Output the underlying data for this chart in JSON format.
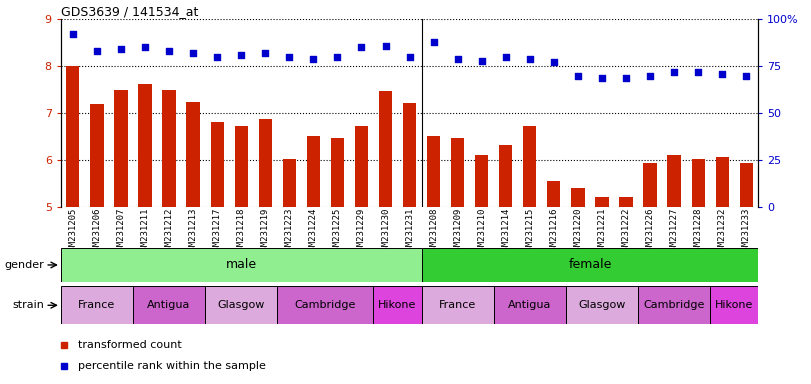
{
  "title": "GDS3639 / 141534_at",
  "samples": [
    "GSM231205",
    "GSM231206",
    "GSM231207",
    "GSM231211",
    "GSM231212",
    "GSM231213",
    "GSM231217",
    "GSM231218",
    "GSM231219",
    "GSM231223",
    "GSM231224",
    "GSM231225",
    "GSM231229",
    "GSM231230",
    "GSM231231",
    "GSM231208",
    "GSM231209",
    "GSM231210",
    "GSM231214",
    "GSM231215",
    "GSM231216",
    "GSM231220",
    "GSM231221",
    "GSM231222",
    "GSM231226",
    "GSM231227",
    "GSM231228",
    "GSM231232",
    "GSM231233"
  ],
  "bar_values": [
    8.0,
    7.2,
    7.5,
    7.62,
    7.5,
    7.25,
    6.82,
    6.72,
    6.88,
    6.02,
    6.52,
    6.48,
    6.72,
    7.48,
    7.22,
    6.52,
    6.48,
    6.12,
    6.32,
    6.72,
    5.55,
    5.42,
    5.22,
    5.22,
    5.95,
    6.12,
    6.02,
    6.08,
    5.95
  ],
  "dot_values": [
    92,
    83,
    84,
    85,
    83,
    82,
    80,
    81,
    82,
    80,
    79,
    80,
    85,
    86,
    80,
    88,
    79,
    78,
    80,
    79,
    77,
    70,
    69,
    69,
    70,
    72,
    72,
    71,
    70
  ],
  "ylim_left": [
    5,
    9
  ],
  "ylim_right": [
    0,
    100
  ],
  "yticks_left": [
    5,
    6,
    7,
    8,
    9
  ],
  "yticks_right": [
    0,
    25,
    50,
    75,
    100
  ],
  "yticklabels_right": [
    "0",
    "25",
    "50",
    "75",
    "100%"
  ],
  "bar_color": "#cc2200",
  "dot_color": "#0000cc",
  "gender_groups": [
    {
      "label": "male",
      "start": 0,
      "end": 14,
      "color": "#90ee90"
    },
    {
      "label": "female",
      "start": 15,
      "end": 28,
      "color": "#33cc33"
    }
  ],
  "strain_groups": [
    {
      "label": "France",
      "start": 0,
      "end": 2,
      "color": "#ddaadd"
    },
    {
      "label": "Antigua",
      "start": 3,
      "end": 5,
      "color": "#cc66cc"
    },
    {
      "label": "Glasgow",
      "start": 6,
      "end": 8,
      "color": "#ddaadd"
    },
    {
      "label": "Cambridge",
      "start": 9,
      "end": 12,
      "color": "#cc66cc"
    },
    {
      "label": "Hikone",
      "start": 13,
      "end": 14,
      "color": "#dd44dd"
    },
    {
      "label": "France",
      "start": 15,
      "end": 17,
      "color": "#ddaadd"
    },
    {
      "label": "Antigua",
      "start": 18,
      "end": 20,
      "color": "#cc66cc"
    },
    {
      "label": "Glasgow",
      "start": 21,
      "end": 23,
      "color": "#ddaadd"
    },
    {
      "label": "Cambridge",
      "start": 24,
      "end": 26,
      "color": "#cc66cc"
    },
    {
      "label": "Hikone",
      "start": 27,
      "end": 28,
      "color": "#dd44dd"
    }
  ],
  "tick_color_left": "#cc2200",
  "tick_color_right": "#0000cc",
  "legend_items": [
    {
      "color": "#cc2200",
      "label": "transformed count"
    },
    {
      "color": "#0000cc",
      "label": "percentile rank within the sample"
    }
  ],
  "n_male": 15,
  "n_total": 29
}
